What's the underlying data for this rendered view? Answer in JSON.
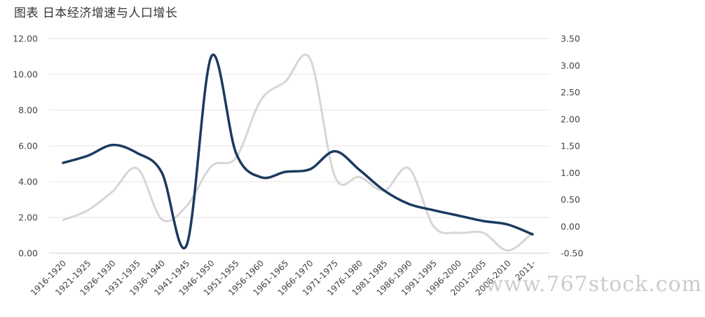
{
  "title": "图表  日本经济增速与人口增长",
  "watermark": "www.767stock.com",
  "chart_data": {
    "type": "line",
    "categories": [
      "1916-1920",
      "1921-1925",
      "1926-1930",
      "1931-1935",
      "1936-1940",
      "1941-1945",
      "1946-1950",
      "1951-1955",
      "1956-1960",
      "1961-1965",
      "1966-1970",
      "1971-1975",
      "1976-1980",
      "1981-1985",
      "1986-1990",
      "1991-1995",
      "1996-2000",
      "2001-2005",
      "2006-2010",
      "2011-"
    ],
    "series": [
      {
        "axis": "left",
        "color": "#1b3a5f",
        "values": [
          5.05,
          5.45,
          6.05,
          5.6,
          4.5,
          0.45,
          11.0,
          5.6,
          4.25,
          4.55,
          4.7,
          5.7,
          4.65,
          3.5,
          2.75,
          2.4,
          2.1,
          1.8,
          1.6,
          1.05
        ]
      },
      {
        "axis": "right",
        "color": "#d6d6d6",
        "values": [
          0.12,
          0.3,
          0.65,
          1.08,
          0.13,
          0.38,
          1.12,
          1.28,
          2.35,
          2.7,
          3.12,
          0.93,
          0.92,
          0.67,
          1.08,
          0.0,
          -0.12,
          -0.12,
          -0.45,
          -0.12
        ]
      }
    ],
    "y_left": {
      "range": [
        0,
        12
      ],
      "ticks": [
        "0.00",
        "2.00",
        "4.00",
        "6.00",
        "8.00",
        "10.00",
        "12.00"
      ]
    },
    "y_right": {
      "range": [
        -0.5,
        3.5
      ],
      "ticks": [
        "-0.50",
        "0.00",
        "0.50",
        "1.00",
        "1.50",
        "2.00",
        "2.50",
        "3.00",
        "3.50"
      ]
    },
    "grid": true,
    "legend": "none",
    "xlabel": "",
    "ylabel": ""
  }
}
